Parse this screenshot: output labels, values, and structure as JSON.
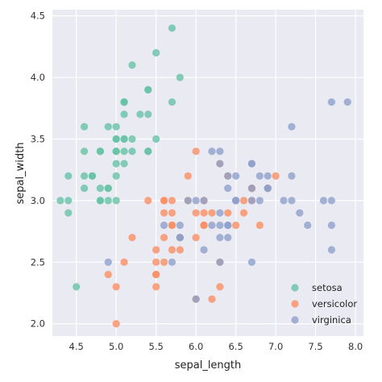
{
  "chart_data": {
    "type": "scatter",
    "title": "",
    "xlabel": "sepal_length",
    "ylabel": "sepal_width",
    "xlim": [
      4.2,
      8.1
    ],
    "ylim": [
      1.9,
      4.55
    ],
    "xticks": [
      4.5,
      5.0,
      5.5,
      6.0,
      6.5,
      7.0,
      7.5,
      8.0
    ],
    "yticks": [
      2.0,
      2.5,
      3.0,
      3.5,
      4.0,
      4.5
    ],
    "xtick_labels": [
      "4.5",
      "5.0",
      "5.5",
      "6.0",
      "6.5",
      "7.0",
      "7.5",
      "8.0"
    ],
    "ytick_labels": [
      "2.0",
      "2.5",
      "3.0",
      "3.5",
      "4.0",
      "4.5"
    ],
    "grid": true,
    "background": "#eaeaf2",
    "legend_position": "bottom-right",
    "series": [
      {
        "name": "setosa",
        "color": "#66c2a5",
        "points": [
          [
            5.1,
            3.5
          ],
          [
            4.9,
            3.0
          ],
          [
            4.7,
            3.2
          ],
          [
            4.6,
            3.1
          ],
          [
            5.0,
            3.6
          ],
          [
            5.4,
            3.9
          ],
          [
            4.6,
            3.4
          ],
          [
            5.0,
            3.4
          ],
          [
            4.4,
            2.9
          ],
          [
            4.9,
            3.1
          ],
          [
            5.4,
            3.7
          ],
          [
            4.8,
            3.4
          ],
          [
            4.8,
            3.0
          ],
          [
            4.3,
            3.0
          ],
          [
            5.8,
            4.0
          ],
          [
            5.7,
            4.4
          ],
          [
            5.4,
            3.9
          ],
          [
            5.1,
            3.5
          ],
          [
            5.7,
            3.8
          ],
          [
            5.1,
            3.8
          ],
          [
            5.4,
            3.4
          ],
          [
            5.1,
            3.7
          ],
          [
            4.6,
            3.6
          ],
          [
            5.1,
            3.3
          ],
          [
            4.8,
            3.4
          ],
          [
            5.0,
            3.0
          ],
          [
            5.0,
            3.4
          ],
          [
            5.2,
            3.5
          ],
          [
            5.2,
            3.4
          ],
          [
            4.7,
            3.2
          ],
          [
            4.8,
            3.1
          ],
          [
            5.4,
            3.4
          ],
          [
            5.2,
            4.1
          ],
          [
            5.5,
            4.2
          ],
          [
            4.9,
            3.1
          ],
          [
            5.0,
            3.2
          ],
          [
            5.5,
            3.5
          ],
          [
            4.9,
            3.6
          ],
          [
            4.4,
            3.0
          ],
          [
            5.1,
            3.4
          ],
          [
            5.0,
            3.5
          ],
          [
            4.5,
            2.3
          ],
          [
            4.4,
            3.2
          ],
          [
            5.0,
            3.5
          ],
          [
            5.1,
            3.8
          ],
          [
            4.8,
            3.0
          ],
          [
            5.1,
            3.8
          ],
          [
            4.6,
            3.2
          ],
          [
            5.3,
            3.7
          ],
          [
            5.0,
            3.3
          ]
        ]
      },
      {
        "name": "versicolor",
        "color": "#fc8d62",
        "points": [
          [
            7.0,
            3.2
          ],
          [
            6.4,
            3.2
          ],
          [
            6.9,
            3.1
          ],
          [
            5.5,
            2.3
          ],
          [
            6.5,
            2.8
          ],
          [
            5.7,
            2.8
          ],
          [
            6.3,
            3.3
          ],
          [
            4.9,
            2.4
          ],
          [
            6.6,
            2.9
          ],
          [
            5.2,
            2.7
          ],
          [
            5.0,
            2.0
          ],
          [
            5.9,
            3.0
          ],
          [
            6.0,
            2.2
          ],
          [
            6.1,
            2.9
          ],
          [
            5.6,
            2.9
          ],
          [
            6.7,
            3.1
          ],
          [
            5.6,
            3.0
          ],
          [
            5.8,
            2.7
          ],
          [
            6.2,
            2.2
          ],
          [
            5.6,
            2.5
          ],
          [
            5.9,
            3.2
          ],
          [
            6.1,
            2.8
          ],
          [
            6.3,
            2.5
          ],
          [
            6.1,
            2.8
          ],
          [
            6.4,
            2.9
          ],
          [
            6.6,
            3.0
          ],
          [
            6.8,
            2.8
          ],
          [
            6.7,
            3.0
          ],
          [
            6.0,
            2.9
          ],
          [
            5.7,
            2.6
          ],
          [
            5.5,
            2.4
          ],
          [
            5.5,
            2.4
          ],
          [
            5.8,
            2.7
          ],
          [
            6.0,
            2.7
          ],
          [
            5.4,
            3.0
          ],
          [
            6.0,
            3.4
          ],
          [
            6.7,
            3.1
          ],
          [
            6.3,
            2.3
          ],
          [
            5.6,
            3.0
          ],
          [
            5.5,
            2.5
          ],
          [
            5.5,
            2.6
          ],
          [
            6.1,
            3.0
          ],
          [
            5.8,
            2.6
          ],
          [
            5.0,
            2.3
          ],
          [
            5.6,
            2.7
          ],
          [
            5.7,
            3.0
          ],
          [
            5.7,
            2.9
          ],
          [
            6.2,
            2.9
          ],
          [
            5.1,
            2.5
          ],
          [
            5.7,
            2.8
          ]
        ]
      },
      {
        "name": "virginica",
        "color": "#8da0cb",
        "points": [
          [
            6.3,
            3.3
          ],
          [
            5.8,
            2.7
          ],
          [
            7.1,
            3.0
          ],
          [
            6.3,
            2.9
          ],
          [
            6.5,
            3.0
          ],
          [
            7.6,
            3.0
          ],
          [
            4.9,
            2.5
          ],
          [
            7.3,
            2.9
          ],
          [
            6.7,
            2.5
          ],
          [
            7.2,
            3.6
          ],
          [
            6.5,
            3.2
          ],
          [
            6.4,
            2.7
          ],
          [
            6.8,
            3.0
          ],
          [
            5.7,
            2.5
          ],
          [
            5.8,
            2.8
          ],
          [
            6.4,
            3.2
          ],
          [
            6.5,
            3.0
          ],
          [
            7.7,
            3.8
          ],
          [
            7.7,
            2.6
          ],
          [
            6.0,
            2.2
          ],
          [
            6.9,
            3.2
          ],
          [
            5.6,
            2.8
          ],
          [
            7.7,
            2.8
          ],
          [
            6.3,
            2.7
          ],
          [
            6.7,
            3.3
          ],
          [
            7.2,
            3.2
          ],
          [
            6.2,
            2.8
          ],
          [
            6.1,
            3.0
          ],
          [
            6.4,
            2.8
          ],
          [
            7.2,
            3.0
          ],
          [
            7.4,
            2.8
          ],
          [
            7.9,
            3.8
          ],
          [
            6.4,
            2.8
          ],
          [
            6.3,
            2.8
          ],
          [
            6.1,
            2.6
          ],
          [
            7.7,
            3.0
          ],
          [
            6.3,
            3.4
          ],
          [
            6.4,
            3.1
          ],
          [
            6.0,
            3.0
          ],
          [
            6.9,
            3.1
          ],
          [
            6.7,
            3.1
          ],
          [
            6.9,
            3.1
          ],
          [
            5.8,
            2.7
          ],
          [
            6.8,
            3.2
          ],
          [
            6.7,
            3.3
          ],
          [
            6.7,
            3.0
          ],
          [
            6.3,
            2.5
          ],
          [
            6.5,
            3.0
          ],
          [
            6.2,
            3.4
          ],
          [
            5.9,
            3.0
          ]
        ]
      }
    ]
  }
}
